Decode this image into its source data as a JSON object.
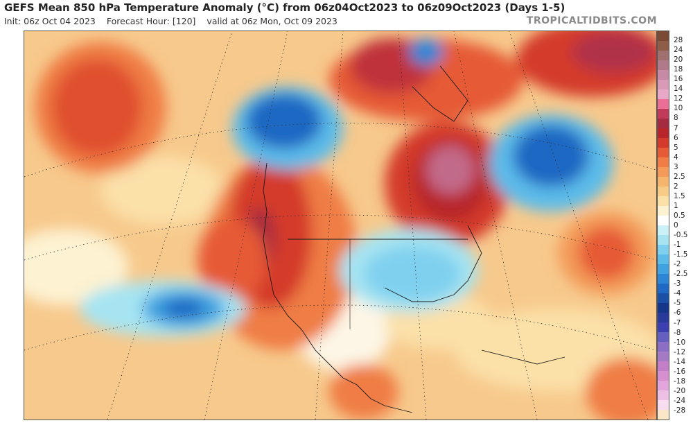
{
  "header": {
    "title": "GEFS Mean 850 hPa Temperature Anomaly (°C) from 06z04Oct2023 to 06z09Oct2023 (Days 1-5)",
    "init": "Init: 06z Oct 04 2023",
    "forecast_hour": "Forecast Hour: [120]",
    "valid": "valid at 06z Mon, Oct 09 2023",
    "brand": "TROPICALTIDBITS.COM"
  },
  "colorbar": {
    "labels": [
      "28",
      "24",
      "20",
      "18",
      "16",
      "14",
      "12",
      "10",
      "8",
      "7",
      "6",
      "5",
      "4",
      "3",
      "2.5",
      "2",
      "1.5",
      "1",
      "0.5",
      "0",
      "-0.5",
      "-1",
      "-1.5",
      "-2",
      "-2.5",
      "-3",
      "-4",
      "-5",
      "-6",
      "-7",
      "-8",
      "-10",
      "-12",
      "-14",
      "-16",
      "-18",
      "-20",
      "-24",
      "-28"
    ],
    "colors": [
      "#7a4a35",
      "#8f5c48",
      "#a07070",
      "#b07a8a",
      "#c78aa6",
      "#d99ab8",
      "#e8a8c8",
      "#e96f96",
      "#c23a5a",
      "#a52b40",
      "#b8262c",
      "#d43a2c",
      "#e65a35",
      "#ef7d45",
      "#f39a58",
      "#f6b56c",
      "#f8cb87",
      "#fbe0a8",
      "#fdf2d2",
      "#ffffff",
      "#c9f1f7",
      "#a6e4f2",
      "#7fd0ef",
      "#5cbbe9",
      "#41a2e0",
      "#2c86d5",
      "#1f68c3",
      "#1a4fa5",
      "#16368a",
      "#2a3a9a",
      "#3d3fb0",
      "#6560c0",
      "#8a6fc4",
      "#a57ac4",
      "#c27fc8",
      "#d690d0",
      "#e3a6dc",
      "#eec0e6",
      "#f8dcf0",
      "#fbe7c8"
    ]
  }
}
